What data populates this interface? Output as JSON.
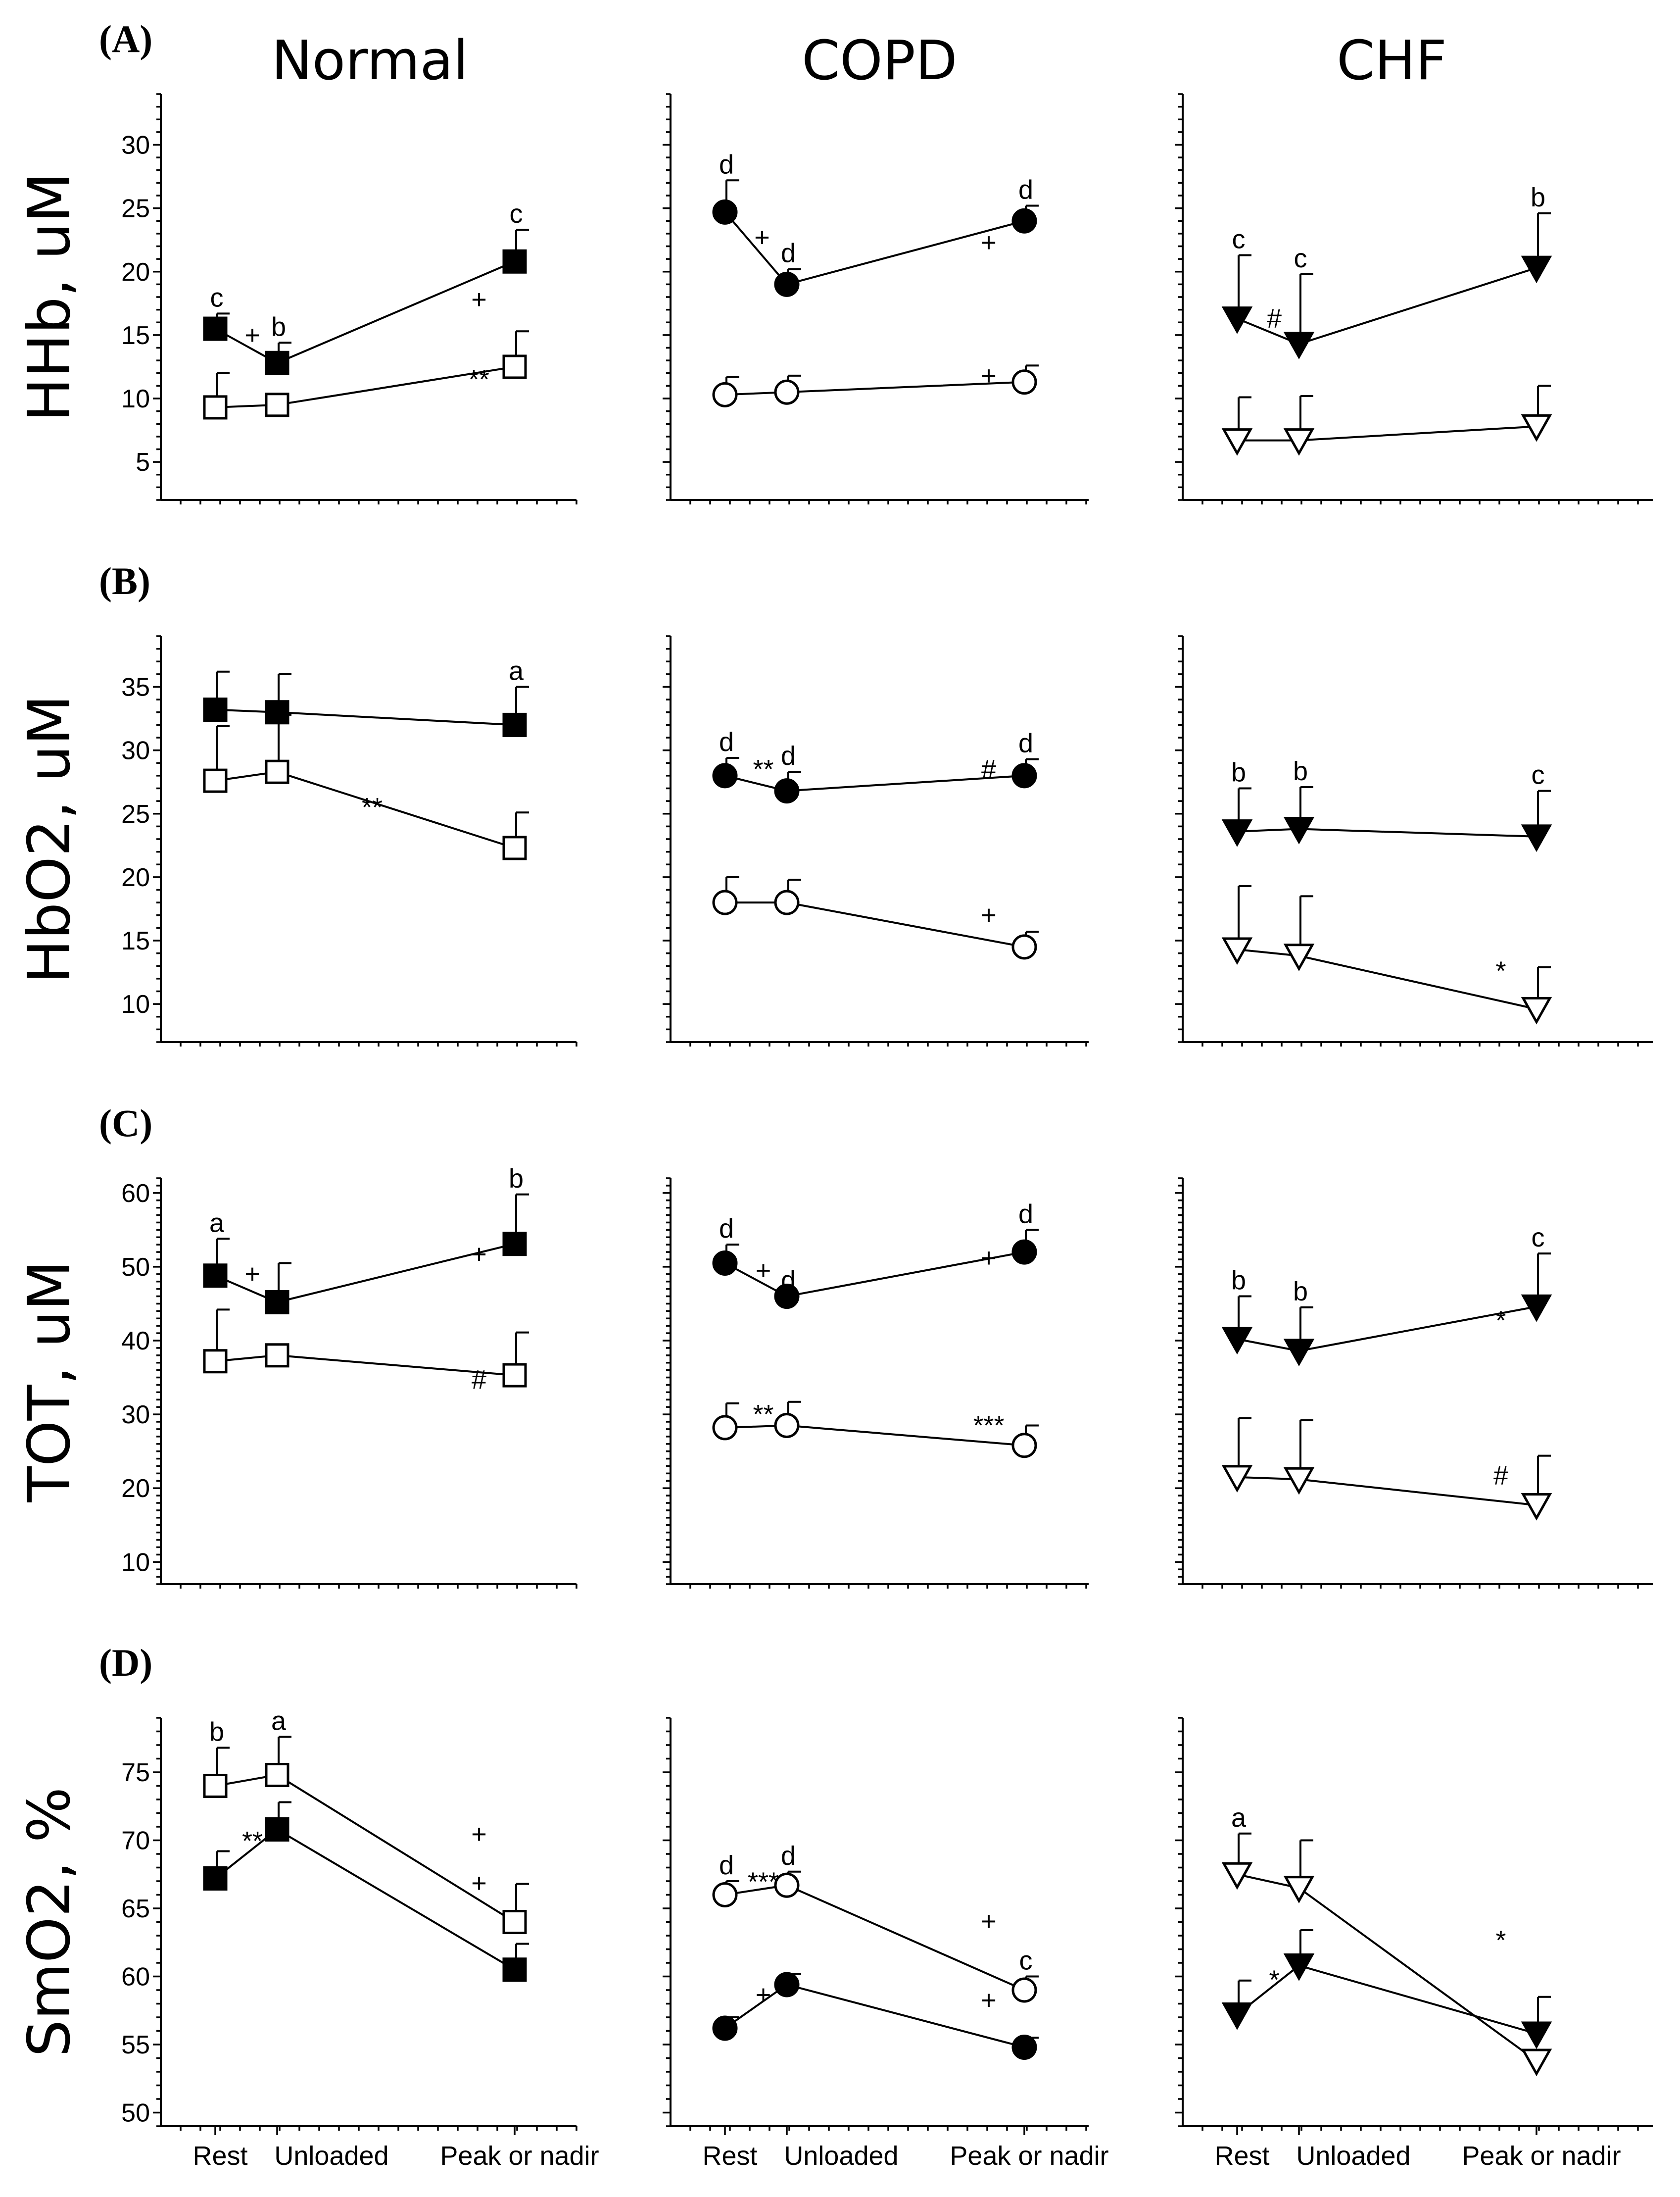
{
  "chart_data": {
    "type": "line",
    "columns": [
      "Normal",
      "COPD",
      "CHF"
    ],
    "x_categories": [
      "Rest",
      "Unloaded",
      "Peak or nadir"
    ],
    "y_tick_step": 5,
    "rows": [
      {
        "panel_label": "(A)",
        "ylabel": "HHb, uM",
        "ylim": [
          2,
          34
        ],
        "yticks": [
          5,
          10,
          15,
          20,
          25,
          30
        ],
        "plots": [
          {
            "column": "Normal",
            "series": [
              {
                "marker": "square",
                "filled": true,
                "values": [
                  15.5,
                  12.8,
                  20.8
                ],
                "err": [
                  1.2,
                  1.6,
                  2.5
                ],
                "labels": [
                  "c",
                  "b",
                  "c"
                ]
              },
              {
                "marker": "square",
                "filled": false,
                "values": [
                  9.3,
                  9.5,
                  12.5
                ],
                "err": [
                  2.7,
                  0,
                  2.8
                ],
                "labels": [
                  "",
                  "",
                  ""
                ]
              }
            ],
            "annotations": [
              {
                "text": "+",
                "x": 0.6,
                "y": 14.3
              },
              {
                "text": "+",
                "x": 1.85,
                "y": 17.1
              },
              {
                "text": "**",
                "x": 1.85,
                "y": 10.8
              }
            ]
          },
          {
            "column": "COPD",
            "series": [
              {
                "marker": "circle",
                "filled": true,
                "values": [
                  24.7,
                  19.0,
                  24.0
                ],
                "err": [
                  2.5,
                  1.2,
                  1.2
                ],
                "labels": [
                  "d",
                  "d",
                  "d"
                ]
              },
              {
                "marker": "circle",
                "filled": false,
                "values": [
                  10.3,
                  10.5,
                  11.3
                ],
                "err": [
                  1.4,
                  1.3,
                  1.3
                ],
                "labels": [
                  "",
                  "",
                  ""
                ]
              }
            ],
            "annotations": [
              {
                "text": "+",
                "x": 0.6,
                "y": 22.0
              },
              {
                "text": "+",
                "x": 1.85,
                "y": 21.6
              },
              {
                "text": "+",
                "x": 1.85,
                "y": 11.1
              }
            ]
          },
          {
            "column": "CHF",
            "series": [
              {
                "marker": "triangle",
                "filled": true,
                "values": [
                  16.3,
                  14.3,
                  20.3
                ],
                "err": [
                  5.0,
                  5.5,
                  4.3
                ],
                "labels": [
                  "c",
                  "c",
                  "b"
                ]
              },
              {
                "marker": "triangle",
                "filled": false,
                "values": [
                  6.7,
                  6.7,
                  7.8
                ],
                "err": [
                  3.4,
                  3.5,
                  3.2
                ],
                "labels": [
                  "",
                  "",
                  ""
                ]
              }
            ],
            "annotations": [
              {
                "text": "#",
                "x": 0.6,
                "y": 15.6
              }
            ]
          }
        ]
      },
      {
        "panel_label": "(B)",
        "ylabel": "HbO2, uM",
        "ylim": [
          7,
          39
        ],
        "yticks": [
          10,
          15,
          20,
          25,
          30,
          35
        ],
        "plots": [
          {
            "column": "Normal",
            "series": [
              {
                "marker": "square",
                "filled": true,
                "values": [
                  33.2,
                  33.0,
                  32.0
                ],
                "err": [
                  3.0,
                  3.0,
                  3.0
                ],
                "labels": [
                  "",
                  "",
                  "a"
                ]
              },
              {
                "marker": "square",
                "filled": false,
                "values": [
                  27.6,
                  28.3,
                  22.3
                ],
                "err": [
                  4.3,
                  4.5,
                  2.8
                ],
                "labels": [
                  "",
                  "",
                  ""
                ]
              }
            ],
            "annotations": [
              {
                "text": "**",
                "x": 1.4,
                "y": 24.8
              }
            ]
          },
          {
            "column": "COPD",
            "series": [
              {
                "marker": "circle",
                "filled": true,
                "values": [
                  28.0,
                  26.8,
                  28.0
                ],
                "err": [
                  1.4,
                  1.5,
                  1.3
                ],
                "labels": [
                  "d",
                  "d",
                  "d"
                ]
              },
              {
                "marker": "circle",
                "filled": false,
                "values": [
                  18.0,
                  18.0,
                  14.5
                ],
                "err": [
                  2.0,
                  1.8,
                  1.2
                ],
                "labels": [
                  "",
                  "",
                  ""
                ]
              }
            ],
            "annotations": [
              {
                "text": "**",
                "x": 0.62,
                "y": 27.8
              },
              {
                "text": "#",
                "x": 1.85,
                "y": 27.8
              },
              {
                "text": "+",
                "x": 1.85,
                "y": 16.3
              }
            ]
          },
          {
            "column": "CHF",
            "series": [
              {
                "marker": "triangle",
                "filled": true,
                "values": [
                  23.6,
                  23.8,
                  23.2
                ],
                "err": [
                  3.4,
                  3.3,
                  3.6
                ],
                "labels": [
                  "b",
                  "b",
                  "c"
                ]
              },
              {
                "marker": "triangle",
                "filled": false,
                "values": [
                  14.3,
                  13.8,
                  9.6
                ],
                "err": [
                  5.0,
                  4.7,
                  3.3
                ],
                "labels": [
                  "",
                  "",
                  ""
                ]
              }
            ],
            "annotations": [
              {
                "text": "*",
                "x": 1.85,
                "y": 11.9
              }
            ]
          }
        ]
      },
      {
        "panel_label": "(C)",
        "ylabel": "TOT, uM",
        "ylim": [
          7,
          62
        ],
        "yticks": [
          10,
          20,
          30,
          40,
          50,
          60
        ],
        "plots": [
          {
            "column": "Normal",
            "series": [
              {
                "marker": "square",
                "filled": true,
                "values": [
                  48.8,
                  45.2,
                  53.1
                ],
                "err": [
                  5.0,
                  5.3,
                  6.7
                ],
                "labels": [
                  "a",
                  "",
                  "b"
                ]
              },
              {
                "marker": "square",
                "filled": false,
                "values": [
                  37.2,
                  38.0,
                  35.3
                ],
                "err": [
                  7.0,
                  0,
                  5.8
                ],
                "labels": [
                  "",
                  "",
                  ""
                ]
              }
            ],
            "annotations": [
              {
                "text": "+",
                "x": 0.6,
                "y": 47.8
              },
              {
                "text": "+",
                "x": 1.85,
                "y": 50.5
              },
              {
                "text": "#",
                "x": 1.85,
                "y": 33.5
              }
            ]
          },
          {
            "column": "COPD",
            "series": [
              {
                "marker": "circle",
                "filled": true,
                "values": [
                  50.5,
                  46.0,
                  52.0
                ],
                "err": [
                  2.5,
                  0,
                  3.0
                ],
                "labels": [
                  "d",
                  "d",
                  "d"
                ]
              },
              {
                "marker": "circle",
                "filled": false,
                "values": [
                  28.2,
                  28.5,
                  25.8
                ],
                "err": [
                  3.3,
                  3.2,
                  2.7
                ],
                "labels": [
                  "",
                  "",
                  ""
                ]
              }
            ],
            "annotations": [
              {
                "text": "+",
                "x": 0.62,
                "y": 48.3
              },
              {
                "text": "+",
                "x": 1.85,
                "y": 50.0
              },
              {
                "text": "**",
                "x": 0.62,
                "y": 28.8
              },
              {
                "text": "***",
                "x": 1.85,
                "y": 27.3
              }
            ]
          },
          {
            "column": "CHF",
            "series": [
              {
                "marker": "triangle",
                "filled": true,
                "values": [
                  40.2,
                  38.6,
                  44.6
                ],
                "err": [
                  5.8,
                  5.9,
                  7.2
                ],
                "labels": [
                  "b",
                  "b",
                  "c"
                ]
              },
              {
                "marker": "triangle",
                "filled": false,
                "values": [
                  21.5,
                  21.2,
                  17.7
                ],
                "err": [
                  8.0,
                  8.0,
                  6.7
                ],
                "labels": [
                  "",
                  "",
                  ""
                ]
              }
            ],
            "annotations": [
              {
                "text": "*",
                "x": 1.85,
                "y": 41.5
              },
              {
                "text": "#",
                "x": 1.85,
                "y": 20.5
              }
            ]
          }
        ]
      },
      {
        "panel_label": "(D)",
        "ylabel": "SmO2, %",
        "ylim": [
          49,
          79
        ],
        "yticks": [
          50,
          55,
          60,
          65,
          70,
          75
        ],
        "plots": [
          {
            "column": "Normal",
            "series": [
              {
                "marker": "square",
                "filled": false,
                "values": [
                  74.0,
                  74.8,
                  64.0
                ],
                "err": [
                  2.8,
                  2.8,
                  2.8
                ],
                "labels": [
                  "b",
                  "a",
                  ""
                ]
              },
              {
                "marker": "square",
                "filled": true,
                "values": [
                  67.2,
                  70.8,
                  60.5
                ],
                "err": [
                  2.0,
                  2.0,
                  1.9
                ],
                "labels": [
                  "",
                  "",
                  ""
                ]
              }
            ],
            "annotations": [
              {
                "text": "**",
                "x": 0.6,
                "y": 69.3
              },
              {
                "text": "+",
                "x": 1.85,
                "y": 69.8
              },
              {
                "text": "+",
                "x": 1.85,
                "y": 66.2
              }
            ]
          },
          {
            "column": "COPD",
            "series": [
              {
                "marker": "circle",
                "filled": false,
                "values": [
                  66.0,
                  66.7,
                  59.0
                ],
                "err": [
                  1.0,
                  1.0,
                  1.0
                ],
                "labels": [
                  "d",
                  "d",
                  "c"
                ]
              },
              {
                "marker": "circle",
                "filled": true,
                "values": [
                  56.2,
                  59.4,
                  54.8
                ],
                "err": [
                  0.8,
                  0.8,
                  0.7
                ],
                "labels": [
                  "",
                  "",
                  ""
                ]
              }
            ],
            "annotations": [
              {
                "text": "***",
                "x": 0.62,
                "y": 66.3
              },
              {
                "text": "+",
                "x": 0.62,
                "y": 58.0
              },
              {
                "text": "+",
                "x": 1.85,
                "y": 63.4
              },
              {
                "text": "+",
                "x": 1.85,
                "y": 57.6
              }
            ]
          },
          {
            "column": "CHF",
            "series": [
              {
                "marker": "triangle",
                "filled": false,
                "values": [
                  67.5,
                  66.5,
                  53.8
                ],
                "err": [
                  3.0,
                  3.5,
                  0
                ],
                "labels": [
                  "a",
                  "",
                  ""
                ]
              },
              {
                "marker": "triangle",
                "filled": true,
                "values": [
                  57.2,
                  60.8,
                  55.8
                ],
                "err": [
                  2.5,
                  2.6,
                  2.7
                ],
                "labels": [
                  "",
                  "",
                  ""
                ]
              }
            ],
            "annotations": [
              {
                "text": "*",
                "x": 0.6,
                "y": 59.1
              },
              {
                "text": "*",
                "x": 1.85,
                "y": 62.0
              }
            ]
          }
        ]
      }
    ]
  }
}
